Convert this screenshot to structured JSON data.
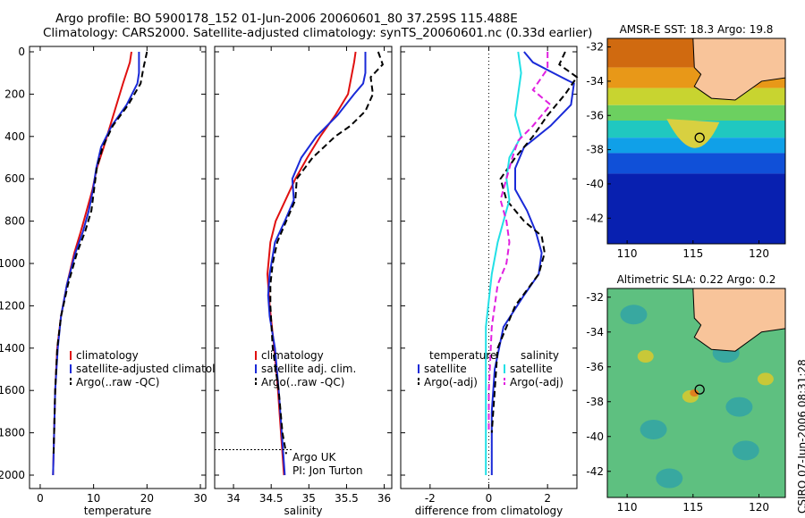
{
  "header": {
    "line1": "Argo profile: BO 5900178_152 01-Jun-2006 20060601_80 37.259S 115.488E",
    "line2": "Climatology: CARS2000. Satellite-adjusted climatology: synTS_20060601.nc (0.33d earlier)"
  },
  "stamp": "CSIRO 07-Jun-2006 08:31:28",
  "colors": {
    "climatology": "#e01010",
    "satellite": "#1a2ad8",
    "argo": "#000000",
    "sat_sal": "#22e0e6",
    "argo_adj": "#e020e0",
    "land": "#f8c49a"
  },
  "chart_data": [
    {
      "type": "line",
      "xlabel": "temperature",
      "ylabel": "",
      "xlim": [
        -2,
        31
      ],
      "ylim": [
        2050,
        0
      ],
      "xticks": [
        0,
        10,
        20,
        30
      ],
      "yticks": [
        0,
        200,
        400,
        600,
        800,
        1000,
        1200,
        1400,
        1600,
        1800,
        2000
      ],
      "legend": [
        "climatology",
        "satellite-adjusted climatology",
        "Argo(..raw -QC)"
      ],
      "legend_position": "lower-right",
      "series": [
        {
          "name": "climatology",
          "style": "solid",
          "color": "climatology",
          "x": [
            17.1,
            16.8,
            15.5,
            13.7,
            11.9,
            10.6,
            9.8,
            8.7,
            7.6,
            6.4,
            5.0,
            3.9,
            3.2,
            2.8,
            2.6,
            2.4
          ],
          "y": [
            0,
            50,
            150,
            300,
            450,
            550,
            650,
            750,
            850,
            950,
            1100,
            1250,
            1400,
            1600,
            1800,
            2000
          ]
        },
        {
          "name": "satellite-adjusted climatology",
          "style": "solid",
          "color": "satellite",
          "x": [
            18.5,
            18.5,
            18.2,
            16.2,
            13.4,
            11.4,
            10.5,
            9.9,
            9.1,
            8.0,
            6.6,
            5.0,
            3.9,
            3.3,
            2.8,
            2.6,
            2.4
          ],
          "y": [
            0,
            100,
            150,
            250,
            350,
            450,
            550,
            650,
            750,
            850,
            950,
            1100,
            1250,
            1400,
            1600,
            1800,
            2000
          ]
        },
        {
          "name": "Argo(..raw -QC)",
          "style": "dashed",
          "color": "argo",
          "x": [
            20.0,
            19.3,
            18.8,
            16.5,
            13.6,
            11.7,
            10.6,
            10.1,
            9.6,
            8.4,
            6.9,
            5.2,
            3.9,
            3.2,
            2.8,
            2.6,
            2.5
          ],
          "y": [
            0,
            80,
            150,
            250,
            350,
            450,
            550,
            650,
            750,
            850,
            950,
            1100,
            1250,
            1400,
            1600,
            1800,
            1900
          ]
        }
      ]
    },
    {
      "type": "line",
      "xlabel": "salinity",
      "xlim": [
        33.75,
        36.1
      ],
      "ylim": [
        2050,
        0
      ],
      "xticks": [
        34,
        34.5,
        35,
        35.5,
        36
      ],
      "legend": [
        "climatology",
        "satellite adj. clim.",
        "Argo(..raw -QC)"
      ],
      "legend_position": "lower-right",
      "annotation": [
        "Argo UK",
        "PI: Jon Turton"
      ],
      "reference_depth": 1880,
      "series": [
        {
          "name": "climatology",
          "style": "solid",
          "color": "climatology",
          "x": [
            35.62,
            35.6,
            35.52,
            35.35,
            35.15,
            34.98,
            34.82,
            34.69,
            34.56,
            34.49,
            34.45,
            34.48,
            34.54,
            34.59,
            34.63,
            34.67
          ],
          "y": [
            0,
            50,
            200,
            300,
            400,
            500,
            600,
            700,
            800,
            900,
            1050,
            1200,
            1400,
            1600,
            1800,
            2000
          ]
        },
        {
          "name": "satellite adj. clim.",
          "style": "solid",
          "color": "satellite",
          "x": [
            35.75,
            35.75,
            35.72,
            35.6,
            35.38,
            35.1,
            34.9,
            34.78,
            34.8,
            34.68,
            34.55,
            34.48,
            34.46,
            34.48,
            34.55,
            34.6,
            34.64,
            34.68
          ],
          "y": [
            0,
            100,
            150,
            200,
            300,
            400,
            500,
            600,
            700,
            800,
            900,
            1050,
            1150,
            1250,
            1400,
            1600,
            1800,
            2000
          ]
        },
        {
          "name": "Argo(..raw -QC)",
          "style": "dashed",
          "color": "argo",
          "x": [
            35.92,
            35.98,
            35.82,
            35.85,
            35.75,
            35.55,
            35.35,
            35.05,
            34.84,
            34.82,
            34.7,
            34.58,
            34.52,
            34.49,
            34.49,
            34.52,
            34.6,
            34.65,
            34.7
          ],
          "y": [
            0,
            60,
            120,
            200,
            280,
            350,
            400,
            500,
            600,
            700,
            800,
            900,
            1000,
            1100,
            1200,
            1400,
            1600,
            1800,
            1900
          ]
        }
      ]
    },
    {
      "type": "line",
      "xlabel": "difference from climatology",
      "xlim": [
        -3,
        3
      ],
      "ylim": [
        2050,
        0
      ],
      "xticks": [
        -2,
        0,
        2
      ],
      "legend_left": [
        "temperature",
        "satellite",
        "Argo(-adj)"
      ],
      "legend_right": [
        "salinity",
        "satellite",
        "Argo(-adj)"
      ],
      "legend_position": "lower-center",
      "series": [
        {
          "name": "temperature satellite",
          "style": "solid",
          "color": "satellite",
          "x": [
            1.2,
            1.5,
            2.2,
            2.9,
            2.8,
            2.1,
            1.2,
            0.9,
            0.9,
            1.3,
            1.6,
            1.8,
            1.7,
            1.2,
            0.5,
            0.2,
            0.1,
            0.1
          ],
          "y": [
            0,
            50,
            100,
            150,
            250,
            350,
            450,
            550,
            650,
            750,
            850,
            950,
            1050,
            1150,
            1300,
            1500,
            1700,
            2000
          ]
        },
        {
          "name": "temperature Argo(-adj)",
          "style": "dashed",
          "color": "argo",
          "x": [
            2.6,
            2.4,
            3.0,
            2.6,
            2.0,
            1.5,
            0.9,
            0.4,
            0.6,
            1.2,
            1.8,
            1.9,
            1.7,
            0.9,
            0.3,
            0.2,
            0.1
          ],
          "y": [
            0,
            60,
            120,
            200,
            300,
            400,
            500,
            600,
            700,
            800,
            870,
            950,
            1050,
            1200,
            1400,
            1600,
            1800
          ]
        },
        {
          "name": "salinity satellite",
          "style": "solid",
          "color": "sat_sal",
          "x": [
            1.0,
            1.1,
            1.0,
            0.9,
            1.1,
            0.7,
            0.6,
            0.7,
            0.5,
            0.3,
            0.1,
            -0.1,
            -0.1,
            -0.1
          ],
          "y": [
            0,
            100,
            200,
            300,
            400,
            500,
            600,
            700,
            800,
            900,
            1050,
            1300,
            1600,
            2000
          ]
        },
        {
          "name": "salinity Argo(-adj)",
          "style": "dashed",
          "color": "argo_adj",
          "x": [
            2.0,
            2.0,
            1.5,
            2.1,
            1.5,
            1.0,
            0.8,
            0.6,
            0.4,
            0.6,
            0.7,
            0.6,
            0.3,
            0.1,
            0.0,
            0.0
          ],
          "y": [
            0,
            80,
            180,
            250,
            350,
            420,
            500,
            600,
            700,
            800,
            900,
            1000,
            1100,
            1300,
            1600,
            1800
          ]
        }
      ]
    },
    {
      "type": "heatmap",
      "title": "AMSR-E SST: 18.3 Argo: 19.8",
      "xticks": [
        110,
        115,
        120
      ],
      "yticks": [
        -32,
        -34,
        -36,
        -38,
        -40,
        -42
      ],
      "xlim": [
        108.5,
        122
      ],
      "ylim": [
        -43.5,
        -31.5
      ],
      "marker": {
        "lon": 115.5,
        "lat": -37.3
      }
    },
    {
      "type": "heatmap",
      "title": "Altimetric SLA: 0.22 Argo: 0.2",
      "xticks": [
        110,
        115,
        120
      ],
      "yticks": [
        -32,
        -34,
        -36,
        -38,
        -40,
        -42
      ],
      "xlim": [
        108.5,
        122
      ],
      "ylim": [
        -43.5,
        -31.5
      ],
      "marker": {
        "lon": 115.5,
        "lat": -37.3
      }
    }
  ]
}
